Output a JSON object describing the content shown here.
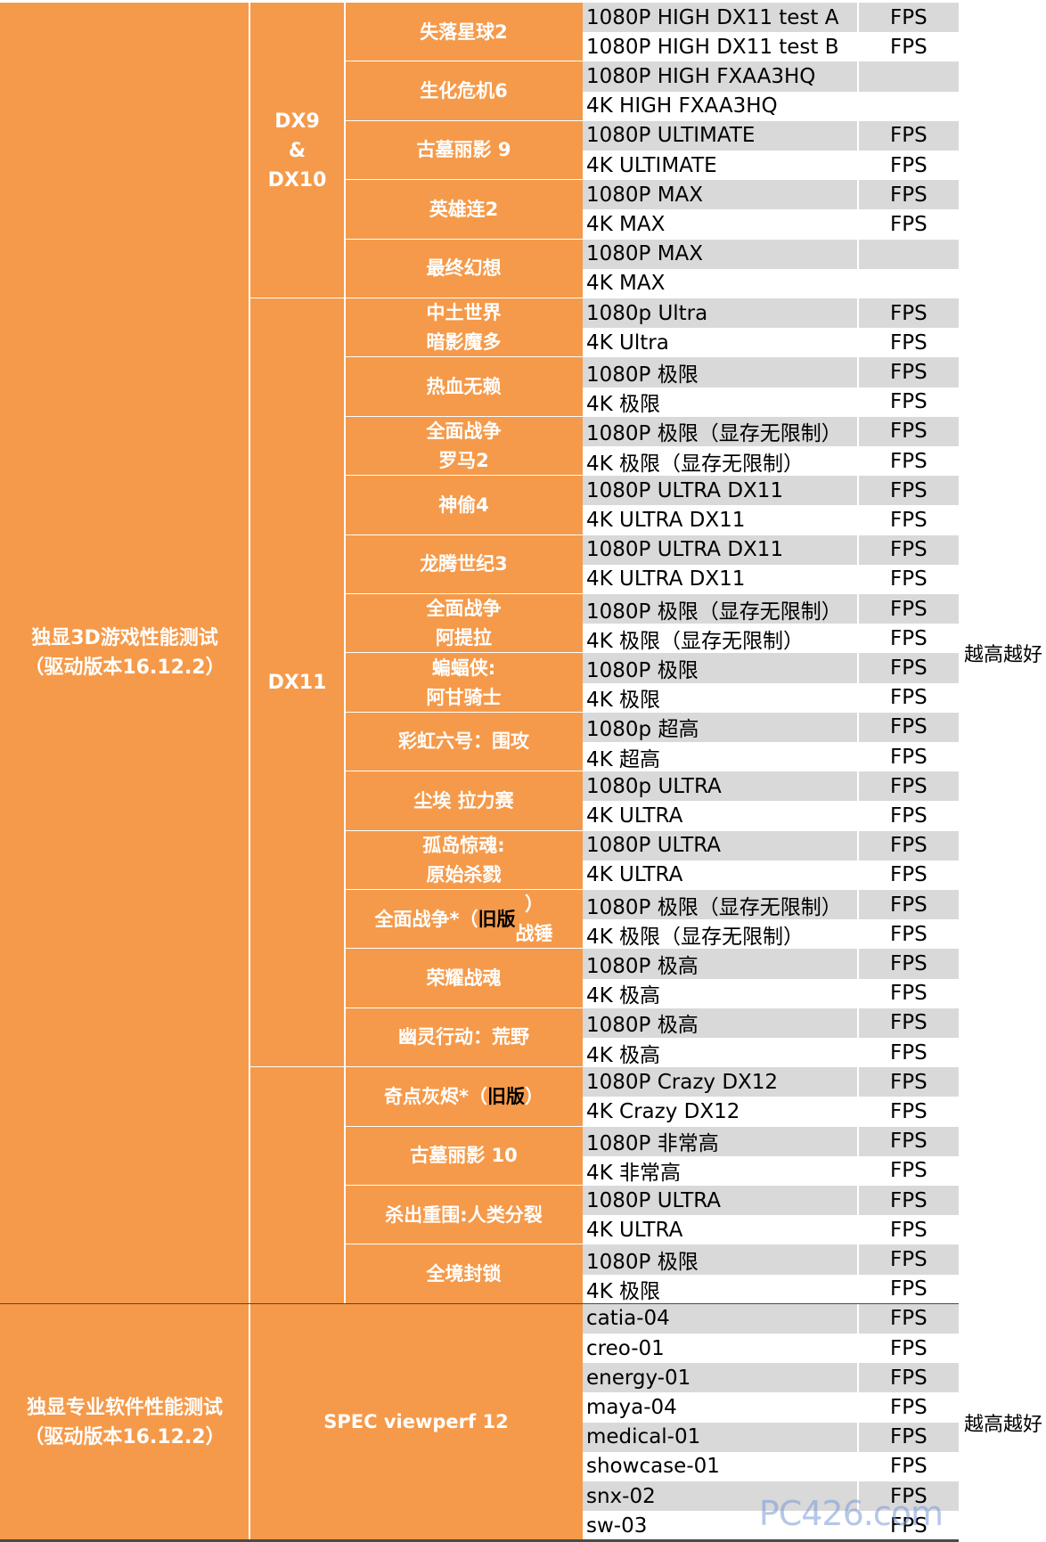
{
  "sections": [
    {
      "category": "独显3D游戏性能测试\n（驱动版本16.12.2）",
      "note": "越高越好",
      "api_groups": [
        {
          "api": "DX9\n&\nDX10",
          "games": [
            {
              "name": "失落星球2",
              "rows": [
                [
                  "1080P HIGH DX11 test A",
                  "FPS"
                ],
                [
                  "1080P HIGH DX11 test B",
                  "FPS"
                ]
              ]
            },
            {
              "name": "生化危机6",
              "rows": [
                [
                  "1080P HIGH FXAA3HQ",
                  ""
                ],
                [
                  "4K HIGH FXAA3HQ",
                  ""
                ]
              ]
            },
            {
              "name": "古墓丽影 9",
              "rows": [
                [
                  "1080P ULTIMATE",
                  "FPS"
                ],
                [
                  "4K ULTIMATE",
                  "FPS"
                ]
              ]
            },
            {
              "name": "英雄连2",
              "rows": [
                [
                  "1080P MAX",
                  "FPS"
                ],
                [
                  "4K MAX",
                  "FPS"
                ]
              ]
            },
            {
              "name": "最终幻想",
              "rows": [
                [
                  "1080P MAX",
                  ""
                ],
                [
                  "4K MAX",
                  ""
                ]
              ]
            }
          ]
        },
        {
          "api": "DX11",
          "games": [
            {
              "name": "中土世界\n暗影魔多",
              "rows": [
                [
                  "1080p Ultra",
                  "FPS"
                ],
                [
                  "4K Ultra",
                  "FPS"
                ]
              ]
            },
            {
              "name": "热血无赖",
              "rows": [
                [
                  "1080P 极限",
                  "FPS"
                ],
                [
                  "4K 极限",
                  "FPS"
                ]
              ]
            },
            {
              "name": "全面战争\n罗马2",
              "rows": [
                [
                  "1080P 极限（显存无限制）",
                  "FPS"
                ],
                [
                  "4K 极限（显存无限制）",
                  "FPS"
                ]
              ]
            },
            {
              "name": "神偷4",
              "rows": [
                [
                  "1080P ULTRA DX11",
                  "FPS"
                ],
                [
                  "4K ULTRA DX11",
                  "FPS"
                ]
              ]
            },
            {
              "name": "龙腾世纪3",
              "rows": [
                [
                  "1080P ULTRA DX11",
                  "FPS"
                ],
                [
                  "4K ULTRA DX11",
                  "FPS"
                ]
              ]
            },
            {
              "name": "全面战争\n阿提拉",
              "rows": [
                [
                  "1080P 极限（显存无限制）",
                  "FPS"
                ],
                [
                  "4K 极限（显存无限制）",
                  "FPS"
                ]
              ]
            },
            {
              "name": "蝙蝠侠:\n阿甘骑士",
              "rows": [
                [
                  "1080P 极限",
                  "FPS"
                ],
                [
                  "4K 极限",
                  "FPS"
                ]
              ]
            },
            {
              "name": "彩虹六号：围攻",
              "rows": [
                [
                  "1080p 超高",
                  "FPS"
                ],
                [
                  "4K 超高",
                  "FPS"
                ]
              ]
            },
            {
              "name": "尘埃 拉力赛",
              "rows": [
                [
                  "1080p ULTRA",
                  "FPS"
                ],
                [
                  "4K ULTRA",
                  "FPS"
                ]
              ]
            },
            {
              "name": "孤岛惊魂:\n原始杀戮",
              "rows": [
                [
                  "1080P ULTRA",
                  "FPS"
                ],
                [
                  "4K ULTRA",
                  "FPS"
                ]
              ]
            },
            {
              "name": "全面战争*（旧版）\n战锤",
              "rows": [
                [
                  "1080P 极限（显存无限制）",
                  "FPS"
                ],
                [
                  "4K 极限（显存无限制）",
                  "FPS"
                ]
              ]
            },
            {
              "name": "荣耀战魂",
              "rows": [
                [
                  "1080P 极高",
                  "FPS"
                ],
                [
                  "4K 极高",
                  "FPS"
                ]
              ]
            },
            {
              "name": "幽灵行动：荒野",
              "rows": [
                [
                  "1080P 极高",
                  "FPS"
                ],
                [
                  "4K 极高",
                  "FPS"
                ]
              ]
            }
          ]
        },
        {
          "api": "",
          "games": [
            {
              "name": "奇点灰烬*（旧版）",
              "rows": [
                [
                  "1080P Crazy DX12",
                  "FPS"
                ],
                [
                  "4K Crazy DX12",
                  "FPS"
                ]
              ]
            },
            {
              "name": "古墓丽影 10",
              "rows": [
                [
                  "1080P 非常高",
                  "FPS"
                ],
                [
                  "4K 非常高",
                  "FPS"
                ]
              ]
            },
            {
              "name": "杀出重围:人类分裂",
              "rows": [
                [
                  "1080P ULTRA",
                  "FPS"
                ],
                [
                  "4K ULTRA",
                  "FPS"
                ]
              ]
            },
            {
              "name": "全境封锁",
              "rows": [
                [
                  "1080P 极限",
                  "FPS"
                ],
                [
                  "4K 极限",
                  "FPS"
                ]
              ]
            }
          ]
        }
      ]
    },
    {
      "category": "独显专业软件性能测试\n（驱动版本16.12.2）",
      "note": "越高越好",
      "api_groups": [
        {
          "api": "",
          "games": [
            {
              "name": "SPEC viewperf 12",
              "wide": true,
              "rows": [
                [
                  "catia-04",
                  "FPS"
                ],
                [
                  "creo-01",
                  "FPS"
                ],
                [
                  "energy-01",
                  "FPS"
                ],
                [
                  "maya-04",
                  "FPS"
                ],
                [
                  "medical-01",
                  "FPS"
                ],
                [
                  "showcase-01",
                  "FPS"
                ],
                [
                  "snx-02",
                  "FPS"
                ],
                [
                  "sw-03",
                  "FPS"
                ]
              ]
            }
          ]
        }
      ]
    }
  ],
  "watermark": "PC426.com",
  "colors": {
    "orange": "#f59a4a",
    "stripe": "#d9d9d9",
    "text": "#000000"
  }
}
